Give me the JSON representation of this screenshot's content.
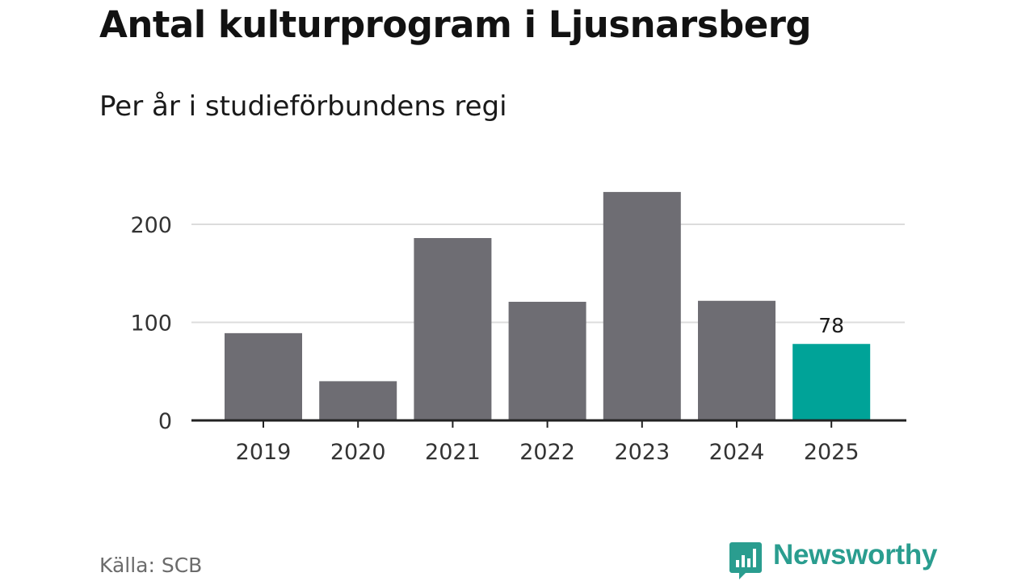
{
  "header": {
    "title": "Antal kulturprogram i Ljusnarsberg",
    "subtitle": "Per år i studieförbundens regi"
  },
  "footer": {
    "source": "Källa: SCB",
    "brand": "Newsworthy"
  },
  "colors": {
    "bar": "#6e6d73",
    "highlight": "#00a398",
    "grid": "#dcdcdc",
    "axis": "#222222",
    "tick_text": "#333333",
    "brand": "#2a9d8f"
  },
  "icons": {
    "brand_logo": "newsworthy-logo-icon"
  },
  "chart_data": {
    "type": "bar",
    "categories": [
      "2019",
      "2020",
      "2021",
      "2022",
      "2023",
      "2024",
      "2025"
    ],
    "values": [
      89,
      40,
      186,
      121,
      233,
      122,
      78
    ],
    "highlight_index": 6,
    "data_labels": [
      {
        "index": 6,
        "text": "78"
      }
    ],
    "title": "Antal kulturprogram i Ljusnarsberg",
    "subtitle": "Per år i studieförbundens regi",
    "xlabel": "",
    "ylabel": "",
    "ylim": [
      0,
      240
    ],
    "yticks": [
      0,
      100,
      200
    ],
    "grid": true,
    "legend": "none"
  }
}
